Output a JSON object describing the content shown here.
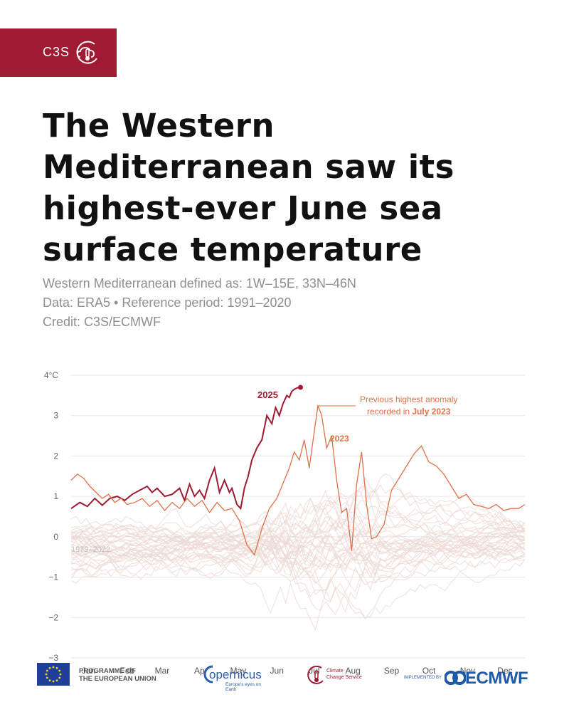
{
  "badge": {
    "label": "C3S",
    "icon": "cloud-thermometer-icon"
  },
  "title": "The Western Mediterranean saw its highest-ever June sea surface temperature",
  "meta": {
    "line1": "Western Mediterranean defined as: 1W–15E, 33N–46N",
    "line2": "Data: ERA5 • Reference period: 1991–2020",
    "line3": "Credit: C3S/ECMWF"
  },
  "colors": {
    "accent": "#9e1b32",
    "series2023": "#e0704a",
    "historical": "#ecd9d4",
    "grid": "#e6e6e6"
  },
  "chart_data": {
    "type": "line",
    "x_unit": "day of year",
    "ylim": [
      -3,
      4
    ],
    "yticks": [
      {
        "v": 4,
        "label": "4°C"
      },
      {
        "v": 3,
        "label": "3"
      },
      {
        "v": 2,
        "label": "2"
      },
      {
        "v": 1,
        "label": "1"
      },
      {
        "v": 0,
        "label": "0"
      },
      {
        "v": -1,
        "label": "−1"
      },
      {
        "v": -2,
        "label": "−2"
      },
      {
        "v": -3,
        "label": "−3"
      }
    ],
    "months": [
      "Jan",
      "Feb",
      "Mar",
      "Apr",
      "May",
      "Jun",
      "Jul",
      "Aug",
      "Sep",
      "Oct",
      "Nov",
      "Dec"
    ],
    "grid": true,
    "series": [
      {
        "name": "2025",
        "color": "#9e1b32",
        "x": [
          1,
          8,
          14,
          20,
          26,
          32,
          38,
          44,
          50,
          56,
          62,
          66,
          70,
          76,
          82,
          88,
          92,
          96,
          100,
          104,
          108,
          112,
          116,
          120,
          124,
          128,
          130,
          134,
          137,
          140,
          143,
          146,
          150,
          154,
          158,
          162,
          165,
          168,
          171,
          174,
          176,
          178,
          180,
          182,
          184,
          185
        ],
        "y": [
          0.7,
          0.85,
          0.75,
          0.95,
          0.78,
          0.95,
          1.0,
          0.9,
          1.05,
          1.15,
          1.25,
          1.1,
          1.2,
          1.0,
          1.05,
          1.2,
          0.9,
          1.3,
          1.0,
          1.15,
          0.95,
          1.4,
          1.7,
          1.1,
          1.4,
          1.1,
          1.2,
          0.8,
          0.7,
          1.2,
          1.5,
          1.9,
          2.2,
          2.4,
          3.0,
          2.8,
          3.2,
          3.0,
          3.3,
          3.5,
          3.45,
          3.6,
          3.65,
          3.68,
          3.7,
          3.7
        ]
      },
      {
        "name": "2023",
        "color": "#e0704a",
        "x": [
          1,
          6,
          11,
          16,
          21,
          26,
          31,
          36,
          41,
          46,
          52,
          58,
          64,
          70,
          76,
          82,
          88,
          94,
          100,
          106,
          112,
          118,
          124,
          130,
          136,
          142,
          148,
          154,
          160,
          166,
          172,
          176,
          180,
          184,
          188,
          192,
          196,
          199,
          202,
          206,
          210,
          214,
          218,
          222,
          226,
          230,
          234,
          238,
          242,
          246,
          252,
          258,
          264,
          270,
          276,
          282,
          288,
          294,
          300,
          306,
          312,
          318,
          324,
          330,
          336,
          342,
          348,
          354,
          360,
          365
        ],
        "y": [
          1.4,
          1.55,
          1.45,
          1.25,
          1.1,
          0.95,
          1.05,
          0.85,
          0.95,
          0.8,
          0.85,
          0.95,
          0.75,
          0.9,
          0.65,
          0.85,
          0.7,
          0.95,
          0.75,
          0.9,
          0.6,
          0.85,
          0.65,
          0.7,
          0.4,
          -0.2,
          -0.45,
          0.2,
          0.7,
          0.95,
          1.4,
          1.7,
          2.1,
          1.9,
          2.4,
          1.7,
          2.6,
          3.25,
          3.0,
          2.2,
          2.5,
          1.4,
          0.6,
          0.7,
          -0.35,
          1.3,
          2.1,
          0.8,
          -0.05,
          0.0,
          0.3,
          1.15,
          1.45,
          1.75,
          2.05,
          2.25,
          1.85,
          1.75,
          1.55,
          1.25,
          0.95,
          1.05,
          0.8,
          0.75,
          0.7,
          0.8,
          0.65,
          0.7,
          0.7,
          0.8
        ]
      }
    ],
    "annotations": [
      {
        "text": "2025",
        "color": "#9e1b32"
      },
      {
        "text": "2023",
        "color": "#e0704a"
      },
      {
        "text_line1": "Previous highest anomaly",
        "text_line2_prefix": "recorded in ",
        "text_line2_bold": "July 2023",
        "color": "#e0704a"
      },
      {
        "text": "1979–2022",
        "color": "#bdbdbd"
      }
    ]
  },
  "footer": {
    "eu_line1": "PROGRAMME OF",
    "eu_line2": "THE EUROPEAN UNION",
    "copernicus_name": "opernicus",
    "copernicus_tagline": "Europe's eyes on Earth",
    "c3s_line1": "Climate",
    "c3s_line2": "Change Service",
    "implemented": "IMPLEMENTED BY",
    "ecmwf": "ECMWF"
  }
}
